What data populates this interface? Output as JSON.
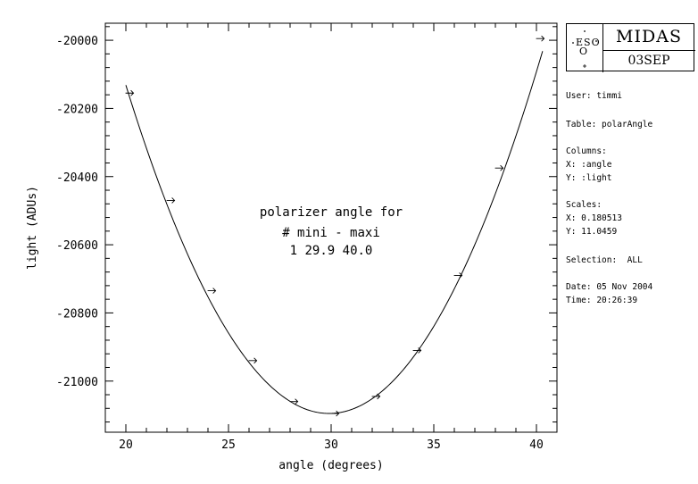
{
  "logo": {
    "org": "ESO",
    "title": "MIDAS",
    "subtitle": "03SEP"
  },
  "info": {
    "user": "User: timmi",
    "table": "Table: polarAngle",
    "columns_header": "Columns:",
    "col_x": "X: :angle",
    "col_y": "Y: :light",
    "scales_header": "Scales:",
    "scale_x": "X: 0.180513",
    "scale_y": "Y: 11.0459",
    "selection": "Selection:  ALL",
    "date": "Date: 05 Nov 2004",
    "time": "Time: 20:26:39"
  },
  "chart_data": {
    "type": "scatter",
    "xlabel": "angle (degrees)",
    "ylabel": "light (ADUs)",
    "xlim": [
      19,
      41
    ],
    "ylim": [
      -21150,
      -19950
    ],
    "xticks": [
      20,
      25,
      30,
      35,
      40
    ],
    "yticks": [
      -20000,
      -20200,
      -20400,
      -20600,
      -20800,
      -21000
    ],
    "points": {
      "x": [
        20.2,
        22.2,
        24.2,
        26.2,
        28.2,
        30.2,
        32.2,
        34.2,
        36.2,
        38.2,
        40.2
      ],
      "y": [
        -20155,
        -20470,
        -20735,
        -20940,
        -21060,
        -21095,
        -21045,
        -20910,
        -20690,
        -20375,
        -19995
      ]
    },
    "fit_curve": {
      "vertex_x": 29.9,
      "vertex_y": -21095,
      "a": 9.83,
      "x_range": [
        20,
        40.3
      ]
    },
    "annotation": [
      "polarizer angle for",
      "# mini - maxi",
      "1 29.9 40.0"
    ]
  }
}
